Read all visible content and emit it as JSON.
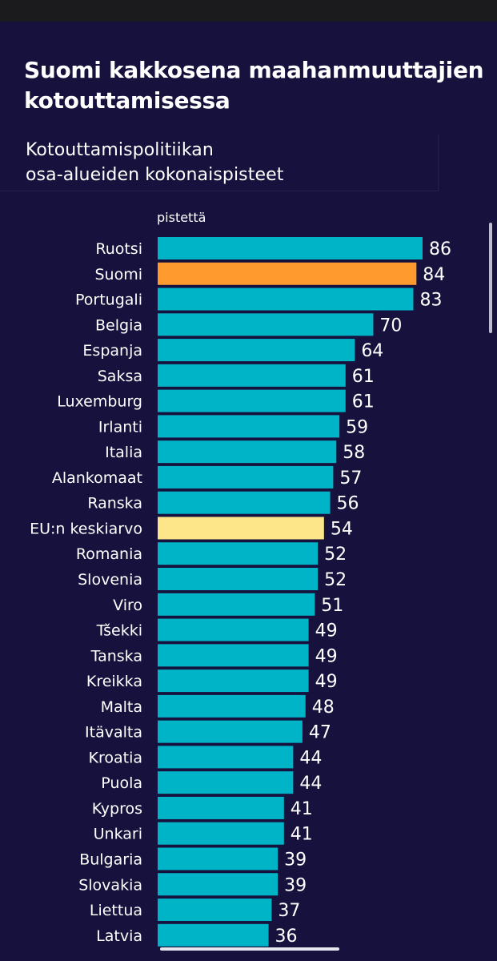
{
  "header": {
    "title": "Suomi kakkosena maahanmuuttajien kotouttamisessa",
    "subtitle_lines": [
      "Kotouttamispolitiikan",
      "osa-alueiden kokonaispisteet"
    ]
  },
  "colors": {
    "background": "#16123d",
    "bar_default": "#00b4c8",
    "bar_highlight": "#ff9a2e",
    "bar_average": "#fde58a",
    "text": "#ffffff"
  },
  "chart_data": {
    "type": "bar",
    "orientation": "horizontal",
    "title": "Suomi kakkosena maahanmuuttajien kotouttamisessa",
    "subtitle": "Kotouttamispolitiikan osa-alueiden kokonaispisteet",
    "xlabel": "pistettä",
    "ylabel": "",
    "xlim": [
      0,
      86
    ],
    "grid": false,
    "categories": [
      "Ruotsi",
      "Suomi",
      "Portugali",
      "Belgia",
      "Espanja",
      "Saksa",
      "Luxemburg",
      "Irlanti",
      "Italia",
      "Alankomaat",
      "Ranska",
      "EU:n keskiarvo",
      "Romania",
      "Slovenia",
      "Viro",
      "Tšekki",
      "Tanska",
      "Kreikka",
      "Malta",
      "Itävalta",
      "Kroatia",
      "Puola",
      "Kypros",
      "Unkari",
      "Bulgaria",
      "Slovakia",
      "Liettua",
      "Latvia"
    ],
    "values": [
      86,
      84,
      83,
      70,
      64,
      61,
      61,
      59,
      58,
      57,
      56,
      54,
      52,
      52,
      51,
      49,
      49,
      49,
      48,
      47,
      44,
      44,
      41,
      41,
      39,
      39,
      37,
      36
    ],
    "highlight": {
      "Suomi": "highlight",
      "EU:n keskiarvo": "average"
    }
  }
}
